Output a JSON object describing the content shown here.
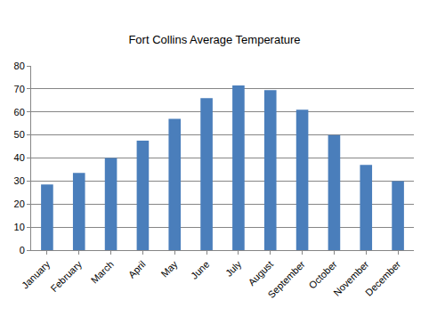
{
  "chart_data": {
    "type": "bar",
    "title": "Fort Collins Average Temperature",
    "categories": [
      "January",
      "February",
      "March",
      "April",
      "May",
      "June",
      "July",
      "August",
      "September",
      "October",
      "November",
      "December"
    ],
    "values": [
      28.5,
      33.5,
      40,
      47.5,
      57,
      66,
      71.5,
      69.5,
      61,
      50,
      37,
      30
    ],
    "color": "#4a7ebb",
    "ylim": [
      0,
      80
    ],
    "yticks": [
      0,
      10,
      20,
      30,
      40,
      50,
      60,
      70,
      80
    ],
    "grid": true
  }
}
